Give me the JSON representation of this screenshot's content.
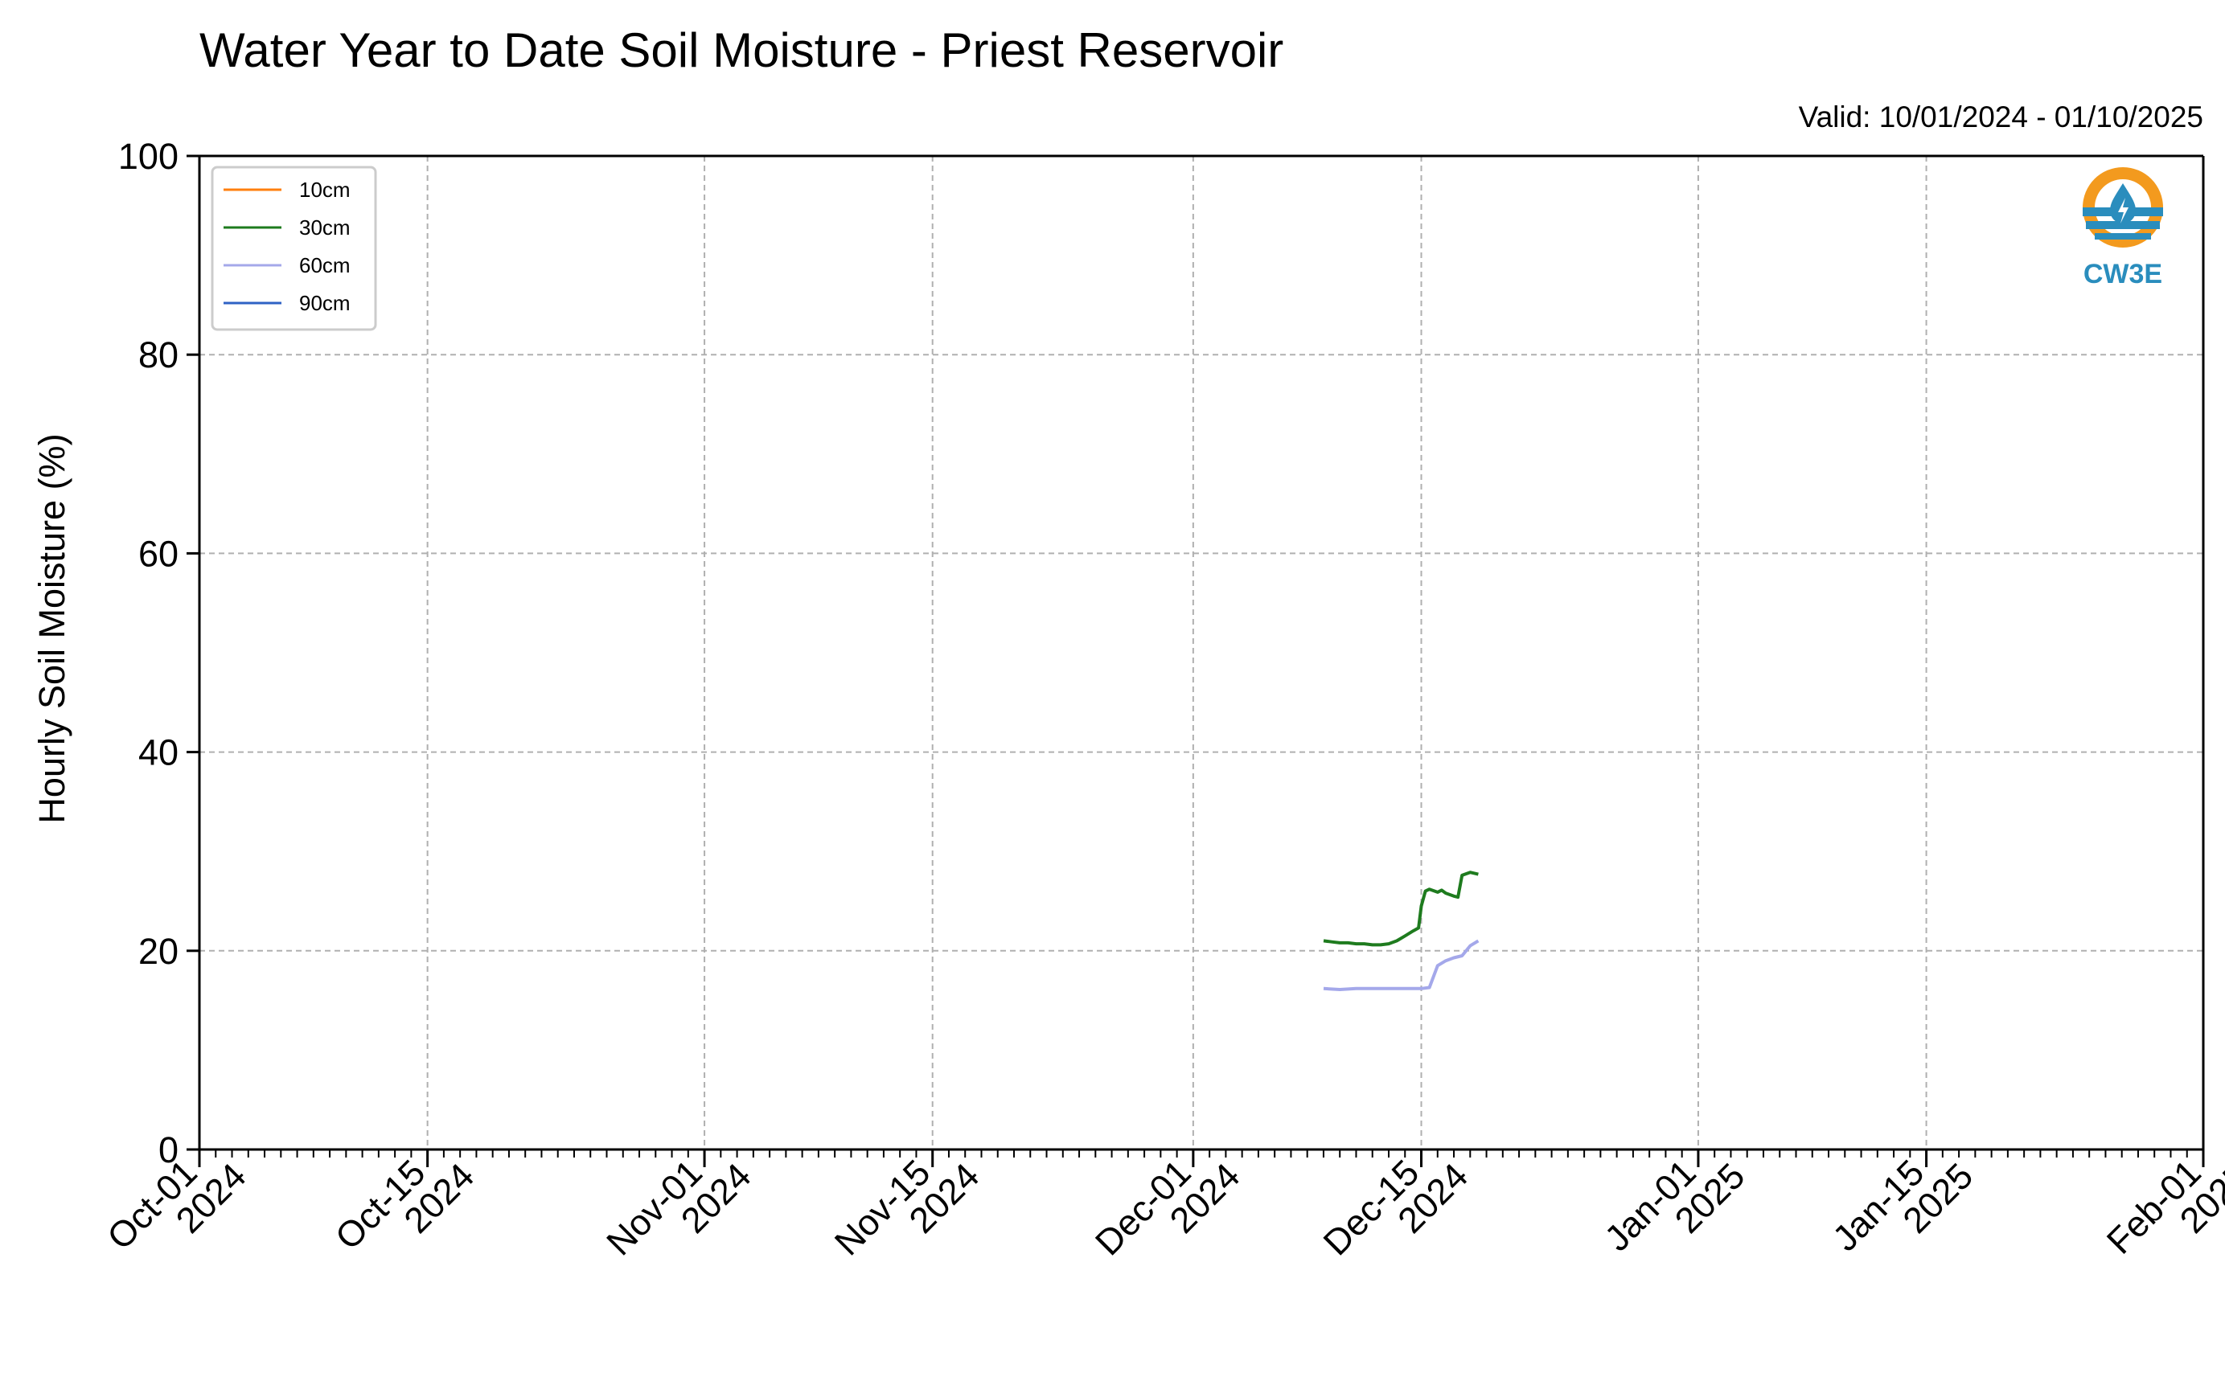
{
  "chart_data": {
    "type": "line",
    "title": "Water Year to Date Soil Moisture - Priest Reservoir",
    "subtitle": "Valid: 10/01/2024 - 01/10/2025",
    "ylabel": "Hourly Soil Moisture (%)",
    "xlabel": "",
    "ylim": [
      0,
      100
    ],
    "yticks": [
      0,
      20,
      40,
      60,
      80,
      100
    ],
    "xlim": [
      "2024-10-01",
      "2025-02-01"
    ],
    "xticks": [
      {
        "date": "2024-10-01",
        "label1": "Oct-01",
        "label2": "2024"
      },
      {
        "date": "2024-10-15",
        "label1": "Oct-15",
        "label2": "2024"
      },
      {
        "date": "2024-11-01",
        "label1": "Nov-01",
        "label2": "2024"
      },
      {
        "date": "2024-11-15",
        "label1": "Nov-15",
        "label2": "2024"
      },
      {
        "date": "2024-12-01",
        "label1": "Dec-01",
        "label2": "2024"
      },
      {
        "date": "2024-12-15",
        "label1": "Dec-15",
        "label2": "2024"
      },
      {
        "date": "2025-01-01",
        "label1": "Jan-01",
        "label2": "2025"
      },
      {
        "date": "2025-01-15",
        "label1": "Jan-15",
        "label2": "2025"
      },
      {
        "date": "2025-02-01",
        "label1": "Feb-01",
        "label2": "2025"
      }
    ],
    "grid": true,
    "legend_position": "top-left",
    "series": [
      {
        "name": "10cm",
        "color": "#ff7f0e",
        "points": []
      },
      {
        "name": "30cm",
        "color": "#1e7b1e",
        "points": [
          [
            "2024-12-09T00",
            21.0
          ],
          [
            "2024-12-09T12",
            20.9
          ],
          [
            "2024-12-10T00",
            20.8
          ],
          [
            "2024-12-10T12",
            20.8
          ],
          [
            "2024-12-11T00",
            20.7
          ],
          [
            "2024-12-11T12",
            20.7
          ],
          [
            "2024-12-12T00",
            20.6
          ],
          [
            "2024-12-12T12",
            20.6
          ],
          [
            "2024-12-13T00",
            20.7
          ],
          [
            "2024-12-13T12",
            21.0
          ],
          [
            "2024-12-14T00",
            21.5
          ],
          [
            "2024-12-14T12",
            22.0
          ],
          [
            "2024-12-14T20",
            22.3
          ],
          [
            "2024-12-15T00",
            24.5
          ],
          [
            "2024-12-15T06",
            26.0
          ],
          [
            "2024-12-15T12",
            26.2
          ],
          [
            "2024-12-16T00",
            25.9
          ],
          [
            "2024-12-16T06",
            26.1
          ],
          [
            "2024-12-16T12",
            25.8
          ],
          [
            "2024-12-17T00",
            25.5
          ],
          [
            "2024-12-17T06",
            25.4
          ],
          [
            "2024-12-17T12",
            27.6
          ],
          [
            "2024-12-18T00",
            27.9
          ],
          [
            "2024-12-18T12",
            27.7
          ]
        ]
      },
      {
        "name": "60cm",
        "color": "#a4a8ea",
        "points": [
          [
            "2024-12-09T00",
            16.2
          ],
          [
            "2024-12-10T00",
            16.1
          ],
          [
            "2024-12-11T00",
            16.2
          ],
          [
            "2024-12-12T00",
            16.2
          ],
          [
            "2024-12-13T00",
            16.2
          ],
          [
            "2024-12-14T00",
            16.2
          ],
          [
            "2024-12-15T00",
            16.2
          ],
          [
            "2024-12-15T12",
            16.3
          ],
          [
            "2024-12-16T00",
            18.5
          ],
          [
            "2024-12-16T12",
            19.0
          ],
          [
            "2024-12-17T00",
            19.3
          ],
          [
            "2024-12-17T12",
            19.5
          ],
          [
            "2024-12-18T00",
            20.5
          ],
          [
            "2024-12-18T12",
            21.0
          ]
        ]
      },
      {
        "name": "90cm",
        "color": "#2f62c4",
        "points": []
      }
    ]
  },
  "logo": {
    "text": "CW3E",
    "ring_color": "#f39a1e",
    "blue_color": "#2a8dbd"
  }
}
